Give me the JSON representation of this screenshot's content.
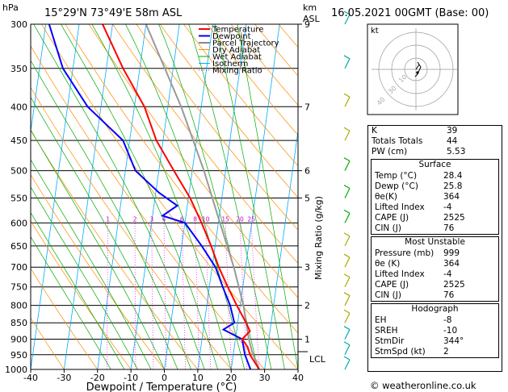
{
  "header": {
    "hpa_unit": "hPa",
    "location": "15°29'N  73°49'E  58m  ASL",
    "km_unit": "km",
    "asl_unit": "ASL",
    "datetime": "16.05.2021  00GMT  (Base: 00)"
  },
  "chart_data": {
    "type": "skew-t",
    "xlabel": "Dewpoint / Temperature (°C)",
    "ylabel_right": "Mixing Ratio (g/kg)",
    "x_ticks": [
      "-40",
      "-30",
      "-20",
      "-10",
      "0",
      "10",
      "20",
      "30",
      "40"
    ],
    "p_ticks": [
      "300",
      "350",
      "400",
      "450",
      "500",
      "550",
      "600",
      "650",
      "700",
      "750",
      "800",
      "850",
      "900",
      "950",
      "1000"
    ],
    "km_ticks": [
      {
        "p": 300,
        "label": "9"
      },
      {
        "p": 400,
        "label": "7"
      },
      {
        "p": 500,
        "label": "6"
      },
      {
        "p": 550,
        "label": "5"
      },
      {
        "p": 700,
        "label": "3"
      },
      {
        "p": 800,
        "label": "2"
      },
      {
        "p": 900,
        "label": "1"
      }
    ],
    "lcl_label": "LCL",
    "lcl_pressure": 940,
    "mixing_ratio_labels": [
      "1",
      "2",
      "3",
      "4",
      "6",
      "8",
      "10",
      "15",
      "20",
      "25"
    ],
    "legend": [
      "Temperature",
      "Dewpoint",
      "Parcel Trajectory",
      "Dry Adiabat",
      "Wet Adiabat",
      "Isotherm",
      "Mixing Ratio"
    ],
    "legend_colors": [
      "#ff0000",
      "#0000ff",
      "#888888",
      "#ff8c00",
      "#00aa00",
      "#00aaff",
      "#ff00ff"
    ],
    "temperature": [
      [
        1000,
        28.4
      ],
      [
        950,
        25
      ],
      [
        925,
        24
      ],
      [
        900,
        22
      ],
      [
        875,
        24
      ],
      [
        850,
        22.5
      ],
      [
        800,
        19
      ],
      [
        750,
        15.5
      ],
      [
        700,
        12
      ],
      [
        650,
        8.8
      ],
      [
        600,
        5
      ],
      [
        550,
        0.5
      ],
      [
        500,
        -5.5
      ],
      [
        450,
        -12
      ],
      [
        400,
        -17
      ],
      [
        350,
        -25
      ],
      [
        300,
        -33
      ]
    ],
    "dewpoint": [
      [
        1000,
        25.8
      ],
      [
        950,
        23.5
      ],
      [
        900,
        22
      ],
      [
        870,
        16
      ],
      [
        850,
        19
      ],
      [
        800,
        17
      ],
      [
        750,
        14
      ],
      [
        700,
        11
      ],
      [
        650,
        6
      ],
      [
        600,
        0
      ],
      [
        585,
        -7
      ],
      [
        565,
        -3
      ],
      [
        540,
        -9
      ],
      [
        500,
        -17
      ],
      [
        450,
        -22
      ],
      [
        400,
        -34
      ],
      [
        350,
        -43
      ],
      [
        300,
        -49
      ]
    ],
    "parcel": [
      [
        1000,
        28.4
      ],
      [
        940,
        25.5
      ],
      [
        900,
        24
      ],
      [
        800,
        21
      ],
      [
        700,
        16.5
      ],
      [
        600,
        10.5
      ],
      [
        500,
        3.5
      ],
      [
        400,
        -6
      ],
      [
        300,
        -20
      ]
    ]
  },
  "hodograph": {
    "label": "kt",
    "ring_labels": [
      "10",
      "30",
      "40"
    ]
  },
  "indices": [
    {
      "label": "K",
      "value": "39"
    },
    {
      "label": "Totals Totals",
      "value": "44"
    },
    {
      "label": "PW (cm)",
      "value": "5.53"
    }
  ],
  "surface": {
    "title": "Surface",
    "rows": [
      {
        "label": "Temp (°C)",
        "value": "28.4"
      },
      {
        "label": "Dewp (°C)",
        "value": "25.8"
      },
      {
        "label": "θe(K)",
        "value": "364"
      },
      {
        "label": "Lifted Index",
        "value": "-4"
      },
      {
        "label": "CAPE (J)",
        "value": "2525"
      },
      {
        "label": "CIN (J)",
        "value": "76"
      }
    ]
  },
  "most_unstable": {
    "title": "Most Unstable",
    "rows": [
      {
        "label": "Pressure (mb)",
        "value": "999"
      },
      {
        "label": "θe (K)",
        "value": "364"
      },
      {
        "label": "Lifted Index",
        "value": "-4"
      },
      {
        "label": "CAPE (J)",
        "value": "2525"
      },
      {
        "label": "CIN (J)",
        "value": "76"
      }
    ]
  },
  "hodograph_table": {
    "title": "Hodograph",
    "rows": [
      {
        "label": "EH",
        "value": "-8"
      },
      {
        "label": "SREH",
        "value": "-10"
      },
      {
        "label": "StmDir",
        "value": "344°"
      },
      {
        "label": "StmSpd (kt)",
        "value": "2"
      }
    ]
  },
  "footer": {
    "copyright": "© weatheronline.co.uk"
  }
}
